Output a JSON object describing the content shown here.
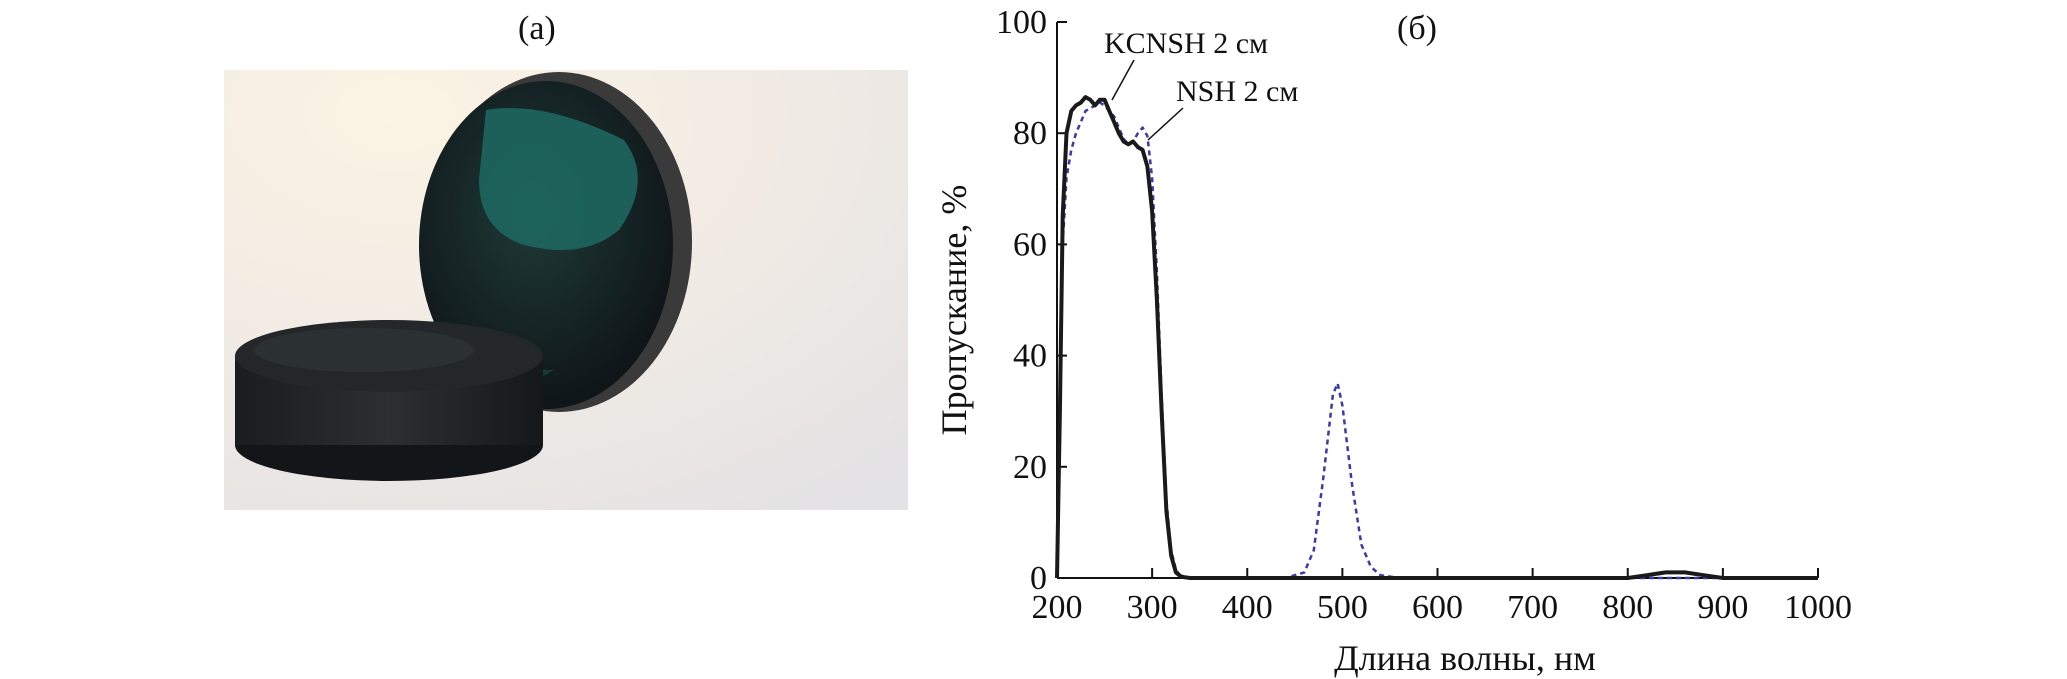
{
  "panels": {
    "a_label": "(а)",
    "b_label": "(б)"
  },
  "photo": {
    "description_icon": "glass-filter-disks-photo"
  },
  "chart_data": {
    "type": "line",
    "xlabel": "Длина волны, нм",
    "ylabel": "Пропускание, %",
    "xlim": [
      200,
      1000
    ],
    "ylim": [
      0,
      100
    ],
    "xticks": [
      200,
      300,
      400,
      500,
      600,
      700,
      800,
      900,
      1000
    ],
    "yticks": [
      0,
      20,
      40,
      60,
      80,
      100
    ],
    "grid": false,
    "series": [
      {
        "name": "KCNSH 2 см",
        "style": "solid",
        "color": "#1a1a1a",
        "x": [
          200,
          203,
          206,
          210,
          215,
          220,
          225,
          230,
          235,
          240,
          245,
          250,
          255,
          260,
          265,
          270,
          275,
          280,
          285,
          290,
          295,
          300,
          305,
          310,
          315,
          320,
          325,
          330,
          335,
          340,
          350,
          400,
          500,
          600,
          700,
          800,
          820,
          840,
          860,
          880,
          900,
          1000
        ],
        "y": [
          0,
          30,
          65,
          80,
          84,
          85,
          85.5,
          86.5,
          86,
          85,
          86,
          86,
          84,
          82,
          80,
          78.5,
          78,
          78.5,
          77.5,
          77,
          74,
          66,
          50,
          30,
          12,
          4,
          1,
          0.3,
          0.1,
          0,
          0,
          0,
          0,
          0,
          0,
          0,
          0.5,
          1,
          1,
          0.5,
          0,
          0
        ]
      },
      {
        "name": "NSH 2 см",
        "style": "dashed",
        "color": "#3a3aa8",
        "x": [
          200,
          203,
          206,
          210,
          215,
          220,
          225,
          230,
          235,
          240,
          245,
          250,
          255,
          260,
          265,
          270,
          275,
          280,
          285,
          290,
          295,
          300,
          305,
          310,
          315,
          320,
          325,
          330,
          340,
          440,
          460,
          470,
          480,
          490,
          495,
          500,
          510,
          520,
          530,
          540,
          560,
          600,
          800,
          1000
        ],
        "y": [
          0,
          28,
          60,
          72,
          77,
          80,
          82,
          84,
          84.5,
          85,
          85.5,
          85,
          84,
          83,
          81,
          79,
          78,
          78.5,
          80,
          81,
          79.5,
          72,
          55,
          33,
          14,
          5,
          1.5,
          0.3,
          0,
          0,
          1,
          5,
          18,
          33,
          35,
          31,
          17,
          6,
          2,
          0.5,
          0,
          0,
          0,
          0
        ]
      }
    ],
    "annotations": [
      {
        "text": "KCNSH 2 см",
        "series": 0
      },
      {
        "text": "NSH 2 см",
        "series": 1
      }
    ]
  }
}
